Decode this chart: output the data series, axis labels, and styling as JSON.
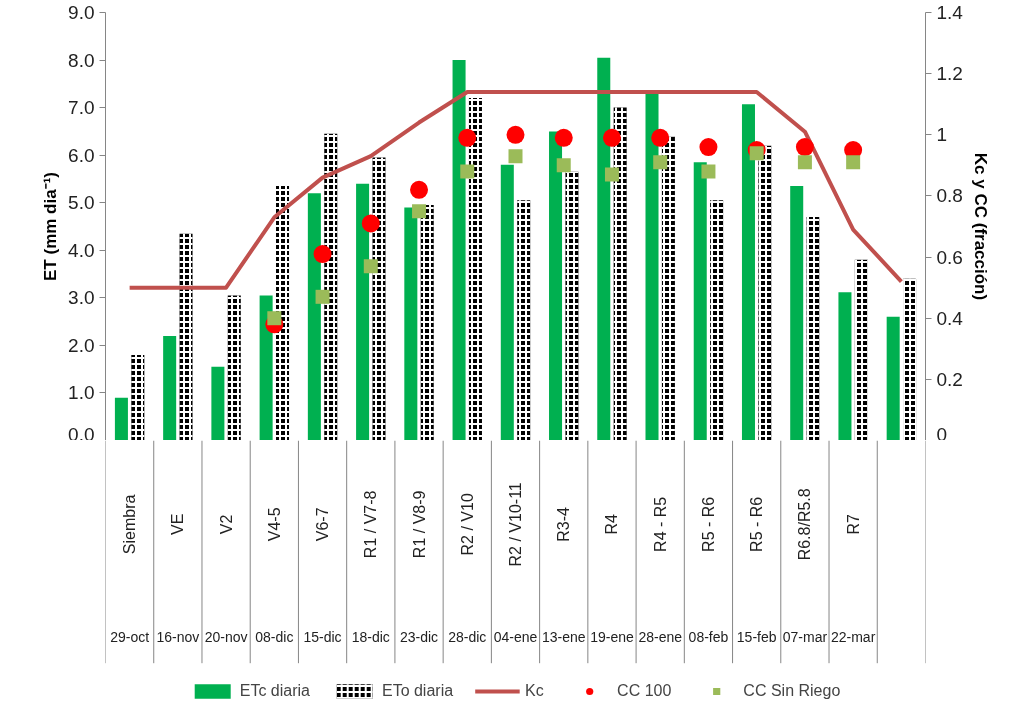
{
  "chart_data": {
    "type": "bar",
    "ylabel": "ET (mm dia⁻¹)",
    "y2label": "Kc y CC (fracción)",
    "categories": [
      "Siembra",
      "VE",
      "V2",
      "V4-5",
      "V6-7",
      "R1 / V7-8",
      "R1 / V8-9",
      "R2 / V10",
      "R2 / V10-11",
      "R3-4",
      "R4",
      "R4 - R5",
      "R5 - R6",
      "R5 - R6",
      "R6.8/R5.8",
      "R7",
      null
    ],
    "annotations": [
      "29-oct",
      "16-nov",
      "20-nov",
      "08-dic",
      "15-dic",
      "18-dic",
      "23-dic",
      "28-dic",
      "04-ene",
      "13-ene",
      "19-ene",
      "28-ene",
      "08-feb",
      "15-feb",
      "07-mar",
      "22-mar"
    ],
    "series": [
      {
        "name": "ETc diaria",
        "color": "#00b050",
        "values": [
          0.9,
          2.2,
          1.55,
          3.05,
          5.2,
          5.4,
          4.9,
          8.0,
          5.8,
          6.5,
          8.05,
          7.33,
          5.85,
          7.07,
          5.35,
          3.12,
          2.6
        ]
      },
      {
        "name": "ETo diaria",
        "color": "#000000",
        "values": [
          1.8,
          4.35,
          3.05,
          5.35,
          6.45,
          5.95,
          4.95,
          7.2,
          5.05,
          5.65,
          7.0,
          6.4,
          5.05,
          6.2,
          4.7,
          3.8,
          3.4
        ]
      },
      {
        "name": "Kc",
        "type": "line",
        "axis": "y2",
        "color": "#c0504d",
        "marker": "none",
        "values": [
          0.5,
          0.5,
          0.5,
          0.73,
          0.86,
          0.93,
          1.04,
          1.14,
          1.14,
          1.14,
          1.14,
          1.14,
          1.14,
          1.14,
          1.01,
          0.69,
          0.52
        ]
      },
      {
        "name": "CC 100",
        "type": "scatter",
        "axis": "y2",
        "color": "#ff0000",
        "marker": "circle",
        "values": [
          null,
          null,
          null,
          0.38,
          0.61,
          0.71,
          0.82,
          0.99,
          1.0,
          0.99,
          0.99,
          0.99,
          0.96,
          0.95,
          0.96,
          0.95,
          null
        ]
      },
      {
        "name": "CC Sin Riego",
        "type": "scatter",
        "axis": "y2",
        "color": "#9bbb59",
        "marker": "square",
        "values": [
          null,
          null,
          null,
          0.4,
          0.47,
          0.57,
          0.75,
          0.88,
          0.93,
          0.9,
          0.87,
          0.91,
          0.88,
          0.94,
          0.91,
          0.91,
          null
        ]
      }
    ],
    "ylim": [
      0,
      9
    ],
    "yticks": [
      {
        "value": 0,
        "label": "0.0"
      },
      {
        "value": 1,
        "label": "1.0"
      },
      {
        "value": 2,
        "label": "2.0"
      },
      {
        "value": 3,
        "label": "3.0"
      },
      {
        "value": 4,
        "label": "4.0"
      },
      {
        "value": 5,
        "label": "5.0"
      },
      {
        "value": 6,
        "label": "6.0"
      },
      {
        "value": 7,
        "label": "7.0"
      },
      {
        "value": 8,
        "label": "8.0"
      },
      {
        "value": 9,
        "label": "9.0"
      }
    ],
    "y2lim": [
      0,
      1.4
    ],
    "y2ticks": [
      0,
      0.2,
      0.4,
      0.6,
      0.8,
      1,
      1.2,
      1.4
    ],
    "legend": "bottom"
  }
}
